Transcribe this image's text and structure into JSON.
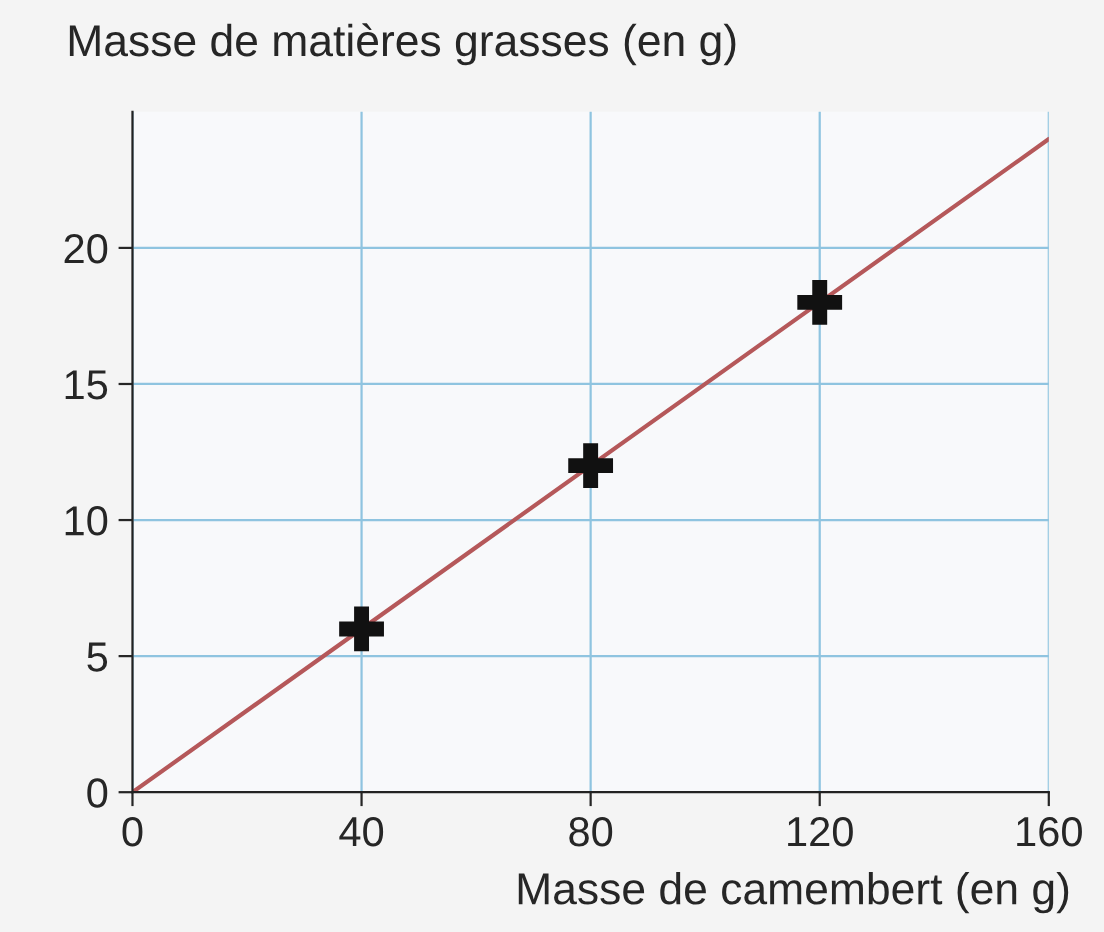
{
  "chart_data": {
    "type": "line",
    "ylabel": "Masse de matières grasses (en g)",
    "xlabel": "Masse de camembert (en g)",
    "xlim": [
      0,
      160
    ],
    "ylim": [
      0,
      25
    ],
    "xticks": [
      0,
      40,
      80,
      120,
      160
    ],
    "yticks": [
      0,
      5,
      10,
      15,
      20
    ],
    "grid": true,
    "series": [
      {
        "color": "#b5585a",
        "x": [
          0,
          160
        ],
        "values": [
          0,
          24
        ],
        "marker": "none"
      },
      {
        "type": "scatter",
        "color": "#111111",
        "x": [
          40,
          80,
          120
        ],
        "values": [
          6,
          12,
          18
        ],
        "marker": "cross"
      }
    ]
  }
}
